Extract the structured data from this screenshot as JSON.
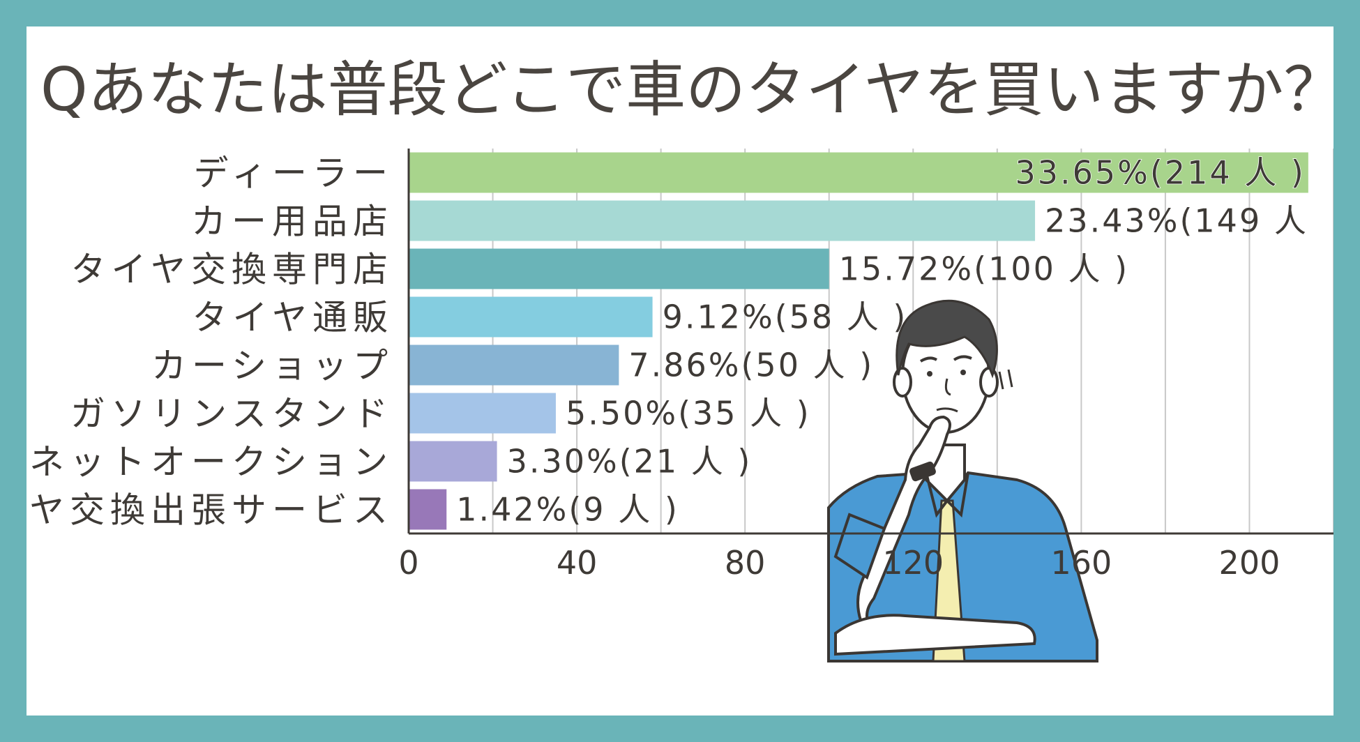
{
  "chart_data": {
    "type": "bar",
    "orientation": "horizontal",
    "title": "Qあなたは普段どこで車のタイヤを買いますか？",
    "categories": [
      "ディーラー",
      "カー用品店",
      "タイヤ交換専門店",
      "タイヤ通販",
      "カーショップ",
      "ガソリンスタンド",
      "ネットオークション",
      "タイヤ交換出張サービス"
    ],
    "values": [
      214,
      149,
      100,
      58,
      50,
      35,
      21,
      9
    ],
    "data_labels": [
      "33.65%(214 人 )",
      "23.43%(149 人",
      "15.72%(100 人 )",
      "9.12%(58 人 )",
      "7.86%(50 人 )",
      "5.50%(35 人 )",
      "3.30%(21 人 )",
      "1.42%(9 人 )"
    ],
    "colors": [
      "#a8d48c",
      "#a6d9d4",
      "#6ab4b8",
      "#84cde0",
      "#88b4d4",
      "#a4c4e8",
      "#a8a8d8",
      "#9878b8"
    ],
    "xlim": [
      0,
      220
    ],
    "xticks": [
      0,
      40,
      80,
      120,
      160,
      200
    ],
    "tick_labels": [
      "0",
      "40",
      "80",
      "120",
      "160",
      "200"
    ],
    "xlabel": "",
    "ylabel": "",
    "grid": true
  },
  "illustration": {
    "name": "thinking man",
    "shirt_color": "#4a9ad4",
    "tie_color": "#f4eeb0",
    "hair_color": "#4a4a4a"
  }
}
